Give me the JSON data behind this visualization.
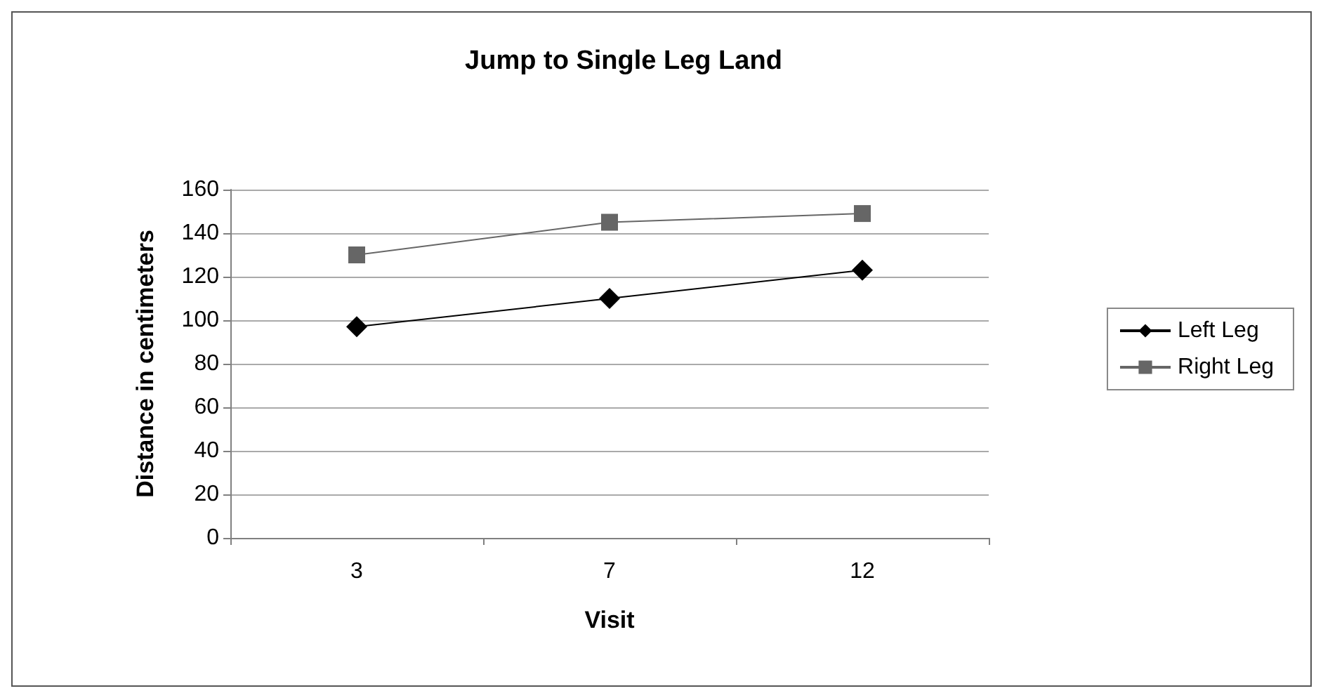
{
  "chart_data": {
    "type": "line",
    "title": "Jump to Single Leg Land",
    "xlabel": "Visit",
    "ylabel": "Distance in centimeters",
    "categories": [
      "3",
      "7",
      "12"
    ],
    "series": [
      {
        "name": "Left Leg",
        "color": "#000000",
        "marker": "diamond",
        "values": [
          97,
          110,
          123
        ]
      },
      {
        "name": "Right Leg",
        "color": "#666666",
        "marker": "square",
        "values": [
          130,
          145,
          149
        ]
      }
    ],
    "ylim": [
      0,
      160
    ],
    "yticks": [
      0,
      20,
      40,
      60,
      80,
      100,
      120,
      140,
      160
    ],
    "grid": "y",
    "legend": "right"
  }
}
